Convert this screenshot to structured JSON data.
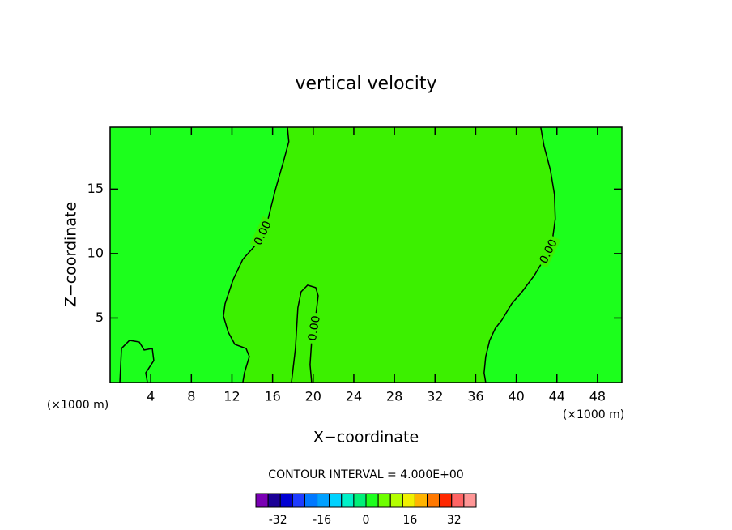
{
  "chart_data": {
    "type": "contour",
    "title": "vertical velocity",
    "xlabel": "X−coordinate",
    "ylabel": "Z−coordinate",
    "xunit_left": "(×1000 m)",
    "xunit_right": "(×1000 m)",
    "xlim": [
      0,
      50.4
    ],
    "ylim": [
      0,
      19.8
    ],
    "xticks": [
      4,
      8,
      12,
      16,
      20,
      24,
      28,
      32,
      36,
      40,
      44,
      48
    ],
    "yticks": [
      5,
      10,
      15
    ],
    "fill_colors": [
      "#1cff1c",
      "#3cf000"
    ],
    "contours": [
      {
        "label": "0.00",
        "x": [
          17.46,
          17.6,
          17.06,
          16.26,
          15.46,
          14.51,
          13.07,
          12.12,
          11.32,
          11.16,
          11.64,
          12.28,
          13.39,
          13.71,
          13.23,
          13.07
        ],
        "y": [
          19.8,
          18.68,
          17.11,
          14.91,
          12.39,
          10.82,
          9.56,
          7.99,
          6.1,
          5.16,
          3.9,
          2.96,
          2.64,
          2.01,
          0.75,
          0
        ]
      },
      {
        "label": "0.00",
        "x": [
          17.86,
          18.25,
          18.49,
          18.81,
          19.45,
          20.25,
          20.49,
          20.25,
          19.85,
          19.69,
          19.85
        ],
        "y": [
          0,
          2.64,
          5.79,
          7.04,
          7.55,
          7.36,
          6.73,
          5.16,
          3.27,
          1.38,
          0
        ]
      },
      {
        "label": "0.00",
        "x": [
          42.41,
          42.73,
          43.36,
          43.76,
          43.84,
          43.52,
          42.73,
          41.77,
          40.57,
          39.54,
          38.58,
          37.94,
          37.38,
          36.99,
          36.83,
          36.99
        ],
        "y": [
          19.8,
          18.36,
          16.48,
          14.59,
          12.7,
          10.82,
          9.56,
          8.3,
          7.04,
          6.1,
          4.84,
          4.21,
          3.27,
          2.01,
          0.75,
          0
        ]
      },
      {
        "x": [
          0.96,
          1.12,
          1.91,
          2.87,
          3.35,
          4.15,
          4.3,
          3.51,
          3.67
        ],
        "y": [
          0,
          2.64,
          3.27,
          3.14,
          2.52,
          2.64,
          1.7,
          0.75,
          0
        ]
      }
    ],
    "contour_interval_text": "CONTOUR INTERVAL = 4.000E+00",
    "colorbar": {
      "lim": [
        -40,
        40
      ],
      "ticks": [
        -32,
        -16,
        0,
        16,
        32
      ],
      "colors": [
        "#7a00b4",
        "#1a0096",
        "#0000d2",
        "#1e3cff",
        "#0078ff",
        "#00a0ff",
        "#00d2ff",
        "#00f0c8",
        "#00f078",
        "#1eff1e",
        "#6eff00",
        "#b4ff00",
        "#f0f000",
        "#ffb400",
        "#ff7800",
        "#ff2800",
        "#ff6464",
        "#ff9696"
      ]
    }
  }
}
